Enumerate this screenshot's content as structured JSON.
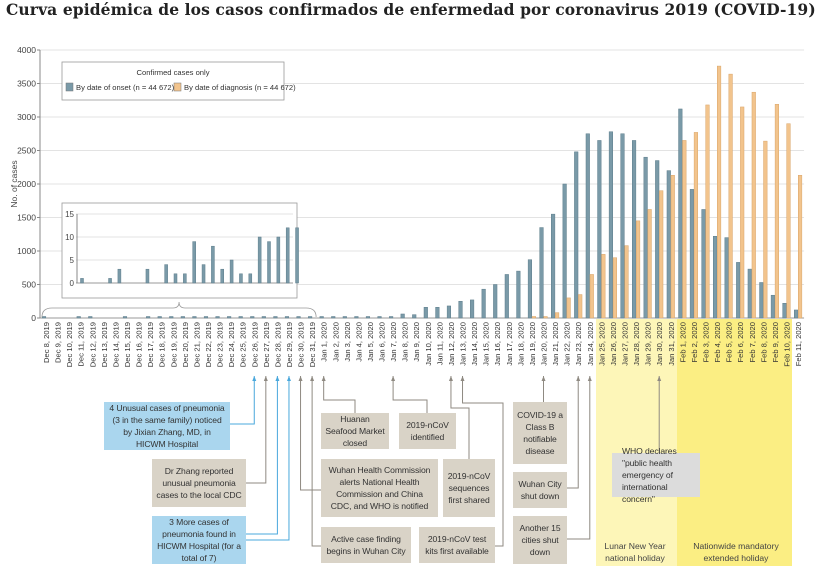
{
  "title": "Curva epidémica de los casos confirmados de enfermedad por coronavirus 2019 (COVID-19)",
  "chart_data": {
    "type": "bar",
    "title": "Curva epidémica de los casos confirmados de enfermedad por coronavirus 2019 (COVID-19)",
    "xlabel": "",
    "ylabel": "No. of cases",
    "ylim": [
      0,
      4000
    ],
    "yticks": [
      "0",
      "500",
      "1000",
      "1500",
      "2000",
      "2500",
      "3000",
      "3500",
      "4000"
    ],
    "grid": true,
    "legend": {
      "title": "Confirmed cases only",
      "placement": "top-left",
      "entries": [
        {
          "label": "By date of onset (n = 44 672)",
          "color": "#7a9aa8"
        },
        {
          "label": "By date of diagnosis (n = 44 672)",
          "color": "#f2c48d"
        }
      ]
    },
    "categories": [
      "Dec 8, 2019",
      "Dec 9, 2019",
      "Dec 10, 2019",
      "Dec 11, 2019",
      "Dec 12, 2019",
      "Dec 13, 2019",
      "Dec 14, 2019",
      "Dec 15, 2019",
      "Dec 16, 2019",
      "Dec 17, 2019",
      "Dec 18, 2019",
      "Dec 19, 2019",
      "Dec 20, 2019",
      "Dec 21, 2019",
      "Dec 22, 2019",
      "Dec 23, 2019",
      "Dec 24, 2019",
      "Dec 25, 2019",
      "Dec 26, 2019",
      "Dec 27, 2019",
      "Dec 28, 2019",
      "Dec 29, 2019",
      "Dec 30, 2019",
      "Dec 31, 2019",
      "Jan 1, 2020",
      "Jan 2, 2020",
      "Jan 3, 2020",
      "Jan 4, 2020",
      "Jan 5, 2020",
      "Jan 6, 2020",
      "Jan 7, 2020",
      "Jan 8, 2020",
      "Jan 9, 2020",
      "Jan 10, 2020",
      "Jan 11, 2020",
      "Jan 12, 2020",
      "Jan 13, 2020",
      "Jan 14, 2020",
      "Jan 15, 2020",
      "Jan 16, 2020",
      "Jan 17, 2020",
      "Jan 18, 2020",
      "Jan 19, 2020",
      "Jan 20, 2020",
      "Jan 21, 2020",
      "Jan 22, 2020",
      "Jan 23, 2020",
      "Jan 24, 2020",
      "Jan 25, 2020",
      "Jan 26, 2020",
      "Jan 27, 2020",
      "Jan 28, 2020",
      "Jan 29, 2020",
      "Jan 30, 2020",
      "Jan 31, 2020",
      "Feb 1, 2020",
      "Feb 2, 2020",
      "Feb 3, 2020",
      "Feb 4, 2020",
      "Feb 5, 2020",
      "Feb 6, 2020",
      "Feb 7, 2020",
      "Feb 8, 2020",
      "Feb 9, 2020",
      "Feb 10, 2020",
      "Feb 11, 2020"
    ],
    "series": [
      {
        "name": "By date of onset (n = 44 672)",
        "color": "#7a9aa8",
        "values": [
          1,
          0,
          0,
          1,
          3,
          0,
          0,
          3,
          0,
          4,
          2,
          2,
          9,
          4,
          8,
          3,
          5,
          2,
          2,
          10,
          9,
          10,
          12,
          12,
          15,
          10,
          15,
          10,
          15,
          15,
          15,
          60,
          50,
          160,
          160,
          180,
          250,
          270,
          430,
          500,
          650,
          700,
          870,
          1350,
          1550,
          2000,
          2480,
          2750,
          2650,
          2780,
          2750,
          2650,
          2400,
          2350,
          2200,
          3120,
          1920,
          1620,
          1220,
          1200,
          830,
          730,
          530,
          340,
          220,
          120
        ]
      },
      {
        "name": "By date of diagnosis (n = 44 672)",
        "color": "#f2c48d",
        "values": [
          0,
          0,
          0,
          0,
          0,
          0,
          0,
          0,
          0,
          0,
          0,
          0,
          0,
          0,
          0,
          0,
          0,
          0,
          0,
          0,
          0,
          0,
          0,
          0,
          0,
          0,
          0,
          0,
          0,
          0,
          0,
          0,
          0,
          0,
          0,
          0,
          0,
          0,
          0,
          0,
          0,
          0,
          5,
          10,
          80,
          300,
          350,
          650,
          950,
          900,
          1080,
          1450,
          1620,
          1900,
          2130,
          2650,
          2770,
          3180,
          3760,
          3640,
          3150,
          3370,
          2640,
          3190,
          2900,
          2130
        ]
      }
    ],
    "inset": {
      "categories": [
        "Dec 8, 2019",
        "Dec 9, 2019",
        "Dec 10, 2019",
        "Dec 11, 2019",
        "Dec 12, 2019",
        "Dec 13, 2019",
        "Dec 14, 2019",
        "Dec 15, 2019",
        "Dec 16, 2019",
        "Dec 17, 2019",
        "Dec 18, 2019",
        "Dec 19, 2019",
        "Dec 20, 2019",
        "Dec 21, 2019",
        "Dec 22, 2019",
        "Dec 23, 2019",
        "Dec 24, 2019",
        "Dec 25, 2019",
        "Dec 26, 2019",
        "Dec 27, 2019",
        "Dec 28, 2019",
        "Dec 29, 2019",
        "Dec 30, 2019",
        "Dec 31, 2019"
      ],
      "values": [
        1,
        0,
        0,
        1,
        3,
        0,
        0,
        3,
        0,
        4,
        2,
        2,
        9,
        4,
        8,
        3,
        5,
        2,
        2,
        10,
        9,
        10,
        12,
        12
      ],
      "ylim": [
        0,
        15
      ],
      "yticks": [
        "0",
        "5",
        "10",
        "15"
      ]
    }
  },
  "annotations": [
    {
      "id": "a1",
      "text": "4 Unusual cases of pneumonia (3 in the same family) noticed by Jixian Zhang, MD, in HICWM Hospital",
      "style": "blue",
      "date": "Dec 26, 2019"
    },
    {
      "id": "a2",
      "text": "Dr Zhang reported unusual pneumonia cases to the local CDC",
      "style": "tan",
      "date": "Dec 27, 2019"
    },
    {
      "id": "a3",
      "text": "3 More cases of pneumonia found in HICWM Hospital (for a total of 7)",
      "style": "blue",
      "date": "Dec 28–29, 2019"
    },
    {
      "id": "a4",
      "text": "Wuhan Health Commission alerts National Health Commission and China CDC, and WHO is notified",
      "style": "tan",
      "date": "Dec 30, 2019"
    },
    {
      "id": "a5",
      "text": "Active case finding begins in Wuhan City",
      "style": "tan",
      "date": "Dec 31, 2019"
    },
    {
      "id": "a6",
      "text": "Huanan Seafood Market closed",
      "style": "tan",
      "date": "Jan 1, 2020"
    },
    {
      "id": "a7",
      "text": "2019-nCoV identified",
      "style": "tan",
      "date": "Jan 7, 2020"
    },
    {
      "id": "a8",
      "text": "2019-nCoV sequences first shared",
      "style": "tan",
      "date": "Jan 12, 2020"
    },
    {
      "id": "a9",
      "text": "2019-nCoV test kits first available",
      "style": "tan",
      "date": "Jan 13, 2020"
    },
    {
      "id": "a10",
      "text": "COVID-19 a Class B notifiable disease",
      "style": "tan",
      "date": "Jan 20, 2020"
    },
    {
      "id": "a11",
      "text": "Wuhan City shut down",
      "style": "tan",
      "date": "Jan 23, 2020"
    },
    {
      "id": "a12",
      "text": "Another 15 cities shut down",
      "style": "tan",
      "date": "Jan 24, 2020"
    },
    {
      "id": "a13",
      "text": "WHO declares \"public health emergency of international concern\"",
      "style": "grey",
      "date": "Jan 30, 2020"
    }
  ],
  "bands": [
    {
      "label": "Lunar New Year national holiday",
      "from": "Jan 25, 2020",
      "to": "Jan 31, 2020",
      "color": "#fdf6b8"
    },
    {
      "label": "Nationwide mandatory extended holiday",
      "from": "Feb 1, 2020",
      "to": "Feb 10, 2020",
      "color": "#fbee83"
    }
  ]
}
